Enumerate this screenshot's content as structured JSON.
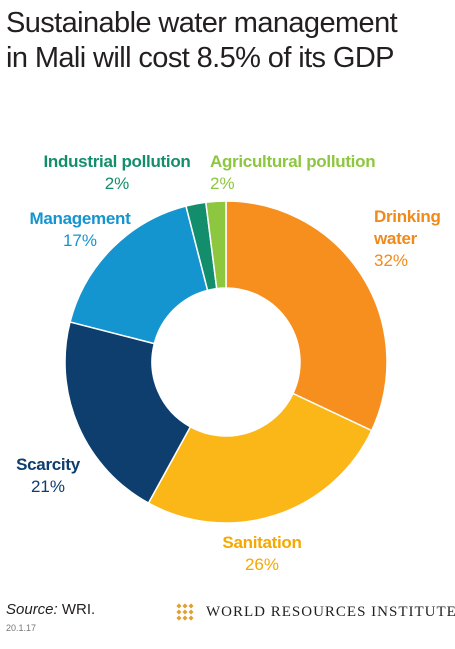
{
  "title_lines": [
    "Sustainable water management",
    "in Mali will cost 8.5% of its GDP"
  ],
  "chart_data": {
    "type": "pie",
    "donut": true,
    "title": "Sustainable water management in Mali will cost 8.5% of its GDP",
    "slices": [
      {
        "label": "Drinking water",
        "label_lines": [
          "Drinking",
          "water"
        ],
        "value": 32,
        "display": "32%",
        "color": "#f68f1e"
      },
      {
        "label": "Sanitation",
        "label_lines": [
          "Sanitation"
        ],
        "value": 26,
        "display": "26%",
        "color": "#fbb617"
      },
      {
        "label": "Scarcity",
        "label_lines": [
          "Scarcity"
        ],
        "value": 21,
        "display": "21%",
        "color": "#0d3e6e"
      },
      {
        "label": "Management",
        "label_lines": [
          "Management"
        ],
        "value": 17,
        "display": "17%",
        "color": "#1495cf"
      },
      {
        "label": "Industrial pollution",
        "label_lines": [
          "Industrial pollution"
        ],
        "value": 2,
        "display": "2%",
        "color": "#138e6c"
      },
      {
        "label": "Agricultural pollution",
        "label_lines": [
          "Agricultural pollution"
        ],
        "value": 2,
        "display": "2%",
        "color": "#8dc63f"
      }
    ],
    "label_colors": [
      "#f08a1a",
      "#f5a800",
      "#0d3e6e",
      "#1495cf",
      "#138e6c",
      "#8dc63f"
    ]
  },
  "footer": {
    "source_label": "Source:",
    "source_text": " WRI.",
    "code": "20.1.17",
    "logo_text": "WORLD RESOURCES INSTITUTE",
    "logo_color": "#e0a030"
  }
}
